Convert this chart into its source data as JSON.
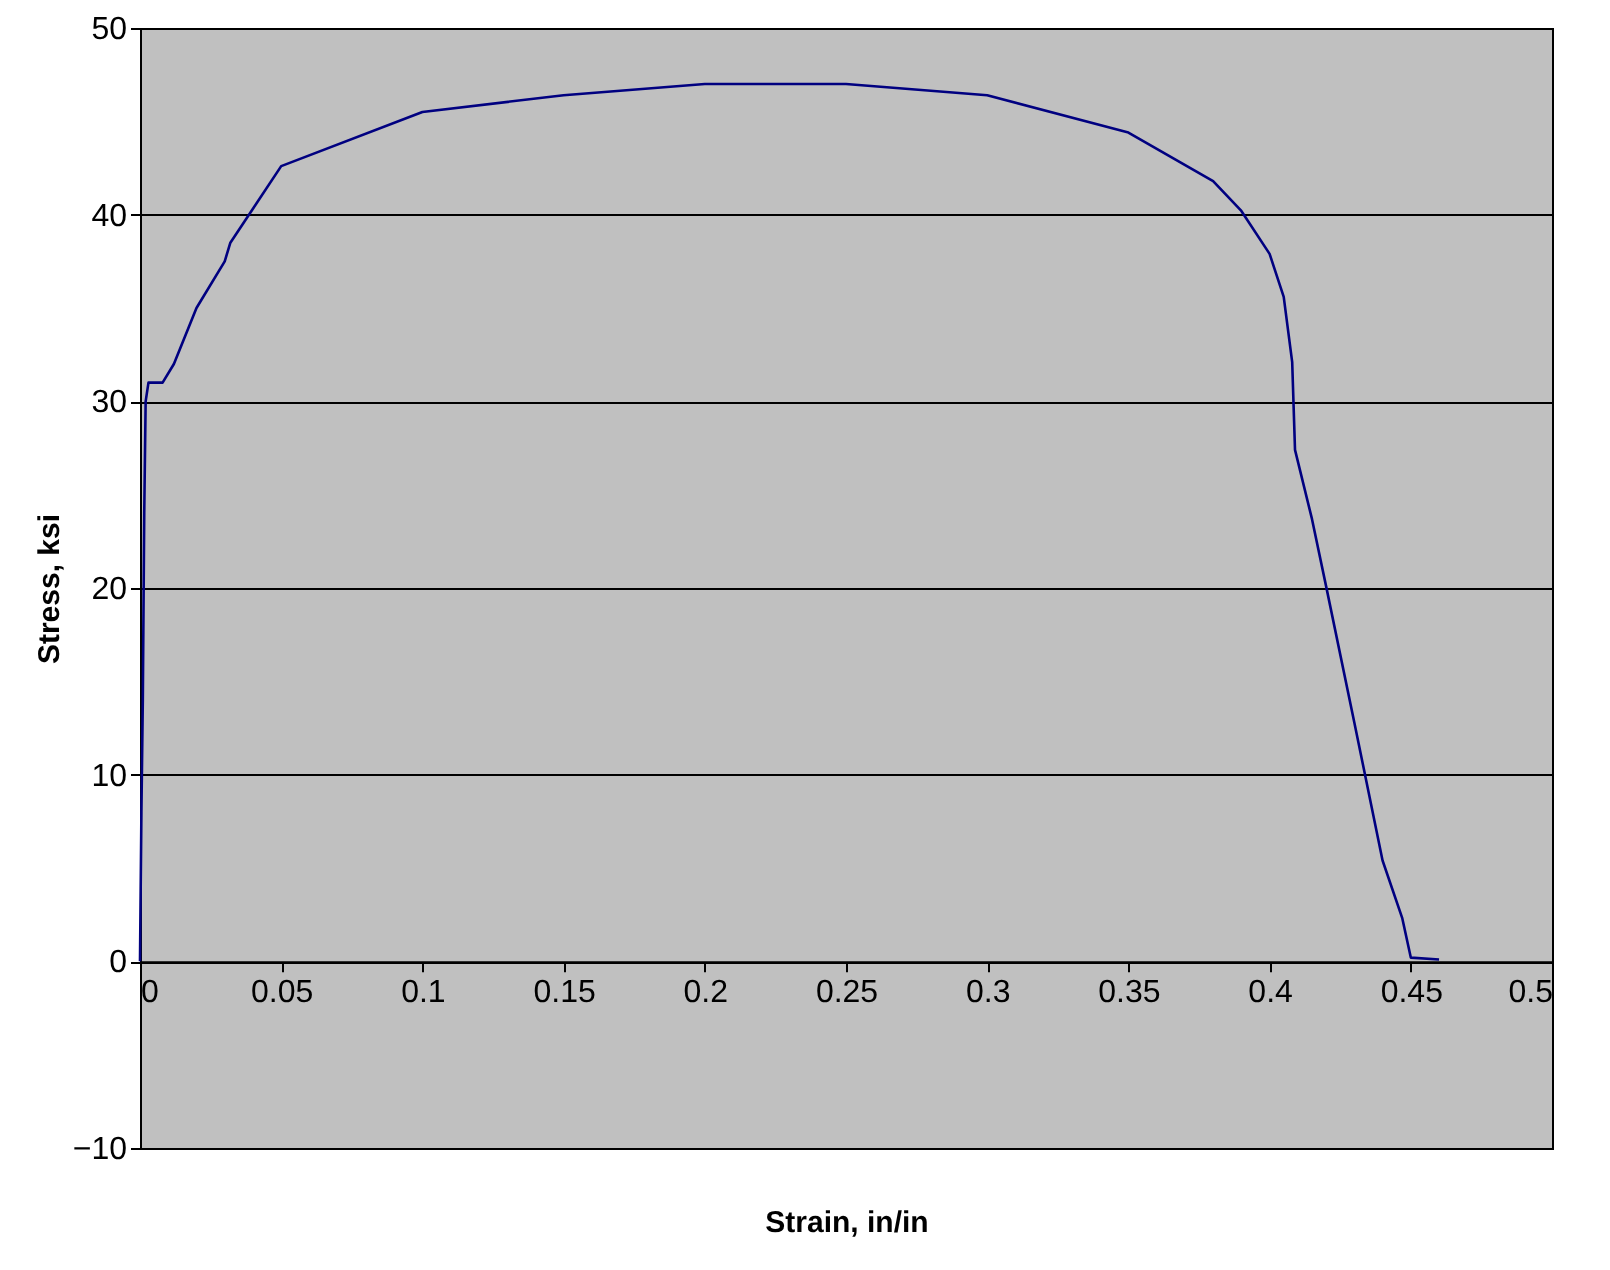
{
  "chart_data": {
    "type": "line",
    "xlabel": "Strain, in/in",
    "ylabel": "Stress, ksi",
    "x": [
      0,
      0.0005,
      0.001,
      0.0015,
      0.002,
      0.003,
      0.008,
      0.012,
      0.02,
      0.03,
      0.032,
      0.05,
      0.1,
      0.15,
      0.2,
      0.25,
      0.3,
      0.35,
      0.38,
      0.39,
      0.4,
      0.405,
      0.408,
      0.409,
      0.415,
      0.42,
      0.43,
      0.44,
      0.447,
      0.45,
      0.46
    ],
    "series": [
      {
        "color": "#000080",
        "values": [
          0,
          8,
          14,
          24,
          30,
          31,
          31,
          32,
          35,
          37.5,
          38.5,
          42.6,
          45.5,
          46.4,
          47,
          47,
          46.4,
          44.4,
          41.8,
          40.2,
          37.9,
          35.6,
          32.1,
          27.4,
          23.7,
          20.1,
          12.8,
          5.4,
          2.3,
          0.2,
          0.1
        ]
      }
    ],
    "xlim": [
      0,
      0.5
    ],
    "xticks": [
      0,
      0.05,
      0.1,
      0.15,
      0.2,
      0.25,
      0.3,
      0.35,
      0.4,
      0.45,
      0.5
    ],
    "ylim": [
      -10,
      50
    ],
    "yticks": [
      -10,
      0,
      10,
      20,
      30,
      40,
      50
    ],
    "grid": "y",
    "marker": "none",
    "line_style": "solid"
  }
}
